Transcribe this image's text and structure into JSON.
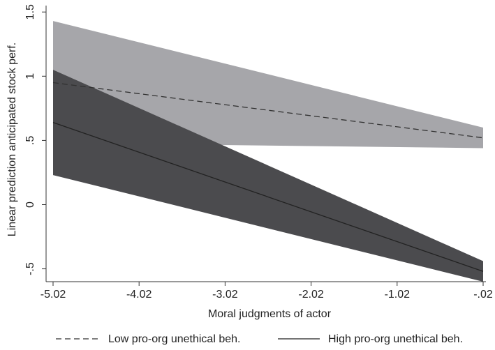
{
  "chart_data": {
    "type": "line",
    "title": "",
    "xlabel": "Moral judgments of actor",
    "ylabel": "Linear prediction anticipated stock perf.",
    "xlim": [
      -5.02,
      -0.02
    ],
    "ylim": [
      -0.6,
      1.55
    ],
    "x_ticks": [
      -5.02,
      -4.02,
      -3.02,
      -2.02,
      -1.02,
      -0.02
    ],
    "x_tick_labels": [
      "-5.02",
      "-4.02",
      "-3.02",
      "-2.02",
      "-1.02",
      "-.02"
    ],
    "y_ticks": [
      -0.5,
      0,
      0.5,
      1,
      1.5
    ],
    "y_tick_labels": [
      "-.5",
      "0",
      ".5",
      "1",
      "1.5"
    ],
    "grid": false,
    "legend_position": "bottom",
    "series": [
      {
        "name": "Low pro-org unethical beh.",
        "line_style": "dashed",
        "line_color": "#333333",
        "ci_color": "#a6a6aa",
        "x": [
          -5.02,
          -0.02
        ],
        "values": [
          0.95,
          0.52
        ],
        "ci_upper": [
          1.43,
          0.6
        ],
        "ci_lower": [
          0.48,
          0.44
        ]
      },
      {
        "name": "High pro-org unethical beh.",
        "line_style": "solid",
        "line_color": "#222222",
        "ci_color": "#4b4b4e",
        "x": [
          -5.02,
          -0.02
        ],
        "values": [
          0.64,
          -0.52
        ],
        "ci_upper": [
          1.05,
          -0.44
        ],
        "ci_lower": [
          0.23,
          -0.6
        ]
      }
    ]
  }
}
